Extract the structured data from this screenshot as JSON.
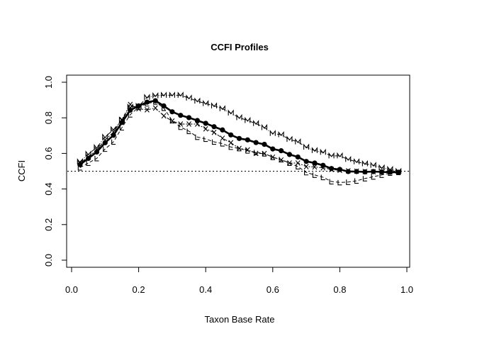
{
  "chart_data": {
    "type": "line",
    "title": "CCFI Profiles",
    "xlabel": "Taxon Base Rate",
    "ylabel": "CCFI",
    "xlim": [
      0,
      1
    ],
    "ylim": [
      0,
      1
    ],
    "xticks": [
      "0.0",
      "0.2",
      "0.4",
      "0.6",
      "0.8",
      "1.0"
    ],
    "yticks": [
      "0.0",
      "0.2",
      "0.4",
      "0.6",
      "0.8",
      "1.0"
    ],
    "reference_line": 0.5,
    "x": [
      0.025,
      0.05,
      0.075,
      0.1,
      0.125,
      0.15,
      0.175,
      0.2,
      0.225,
      0.25,
      0.275,
      0.3,
      0.325,
      0.35,
      0.375,
      0.4,
      0.425,
      0.45,
      0.475,
      0.5,
      0.525,
      0.55,
      0.575,
      0.6,
      0.625,
      0.65,
      0.675,
      0.7,
      0.725,
      0.75,
      0.775,
      0.8,
      0.825,
      0.85,
      0.875,
      0.9,
      0.925,
      0.95,
      0.975
    ],
    "series": [
      {
        "name": "CCFI",
        "marker": "•",
        "values": [
          0.537,
          0.572,
          0.608,
          0.66,
          0.702,
          0.774,
          0.843,
          0.867,
          0.888,
          0.896,
          0.867,
          0.834,
          0.814,
          0.801,
          0.785,
          0.769,
          0.75,
          0.732,
          0.704,
          0.684,
          0.676,
          0.661,
          0.651,
          0.625,
          0.615,
          0.594,
          0.58,
          0.555,
          0.546,
          0.533,
          0.515,
          0.51,
          0.498,
          0.498,
          0.496,
          0.498,
          0.496,
          0.494,
          0.494
        ]
      },
      {
        "name": "M",
        "marker": "M",
        "values": [
          0.553,
          0.596,
          0.633,
          0.692,
          0.734,
          0.788,
          0.86,
          0.865,
          0.915,
          0.924,
          0.927,
          0.927,
          0.927,
          0.911,
          0.894,
          0.88,
          0.867,
          0.851,
          0.827,
          0.801,
          0.785,
          0.768,
          0.745,
          0.712,
          0.705,
          0.679,
          0.665,
          0.635,
          0.616,
          0.606,
          0.586,
          0.586,
          0.566,
          0.553,
          0.542,
          0.533,
          0.519,
          0.51,
          0.499
        ]
      },
      {
        "name": "X",
        "marker": "X",
        "values": [
          0.545,
          0.58,
          0.62,
          0.675,
          0.72,
          0.79,
          0.875,
          0.851,
          0.845,
          0.855,
          0.811,
          0.782,
          0.765,
          0.765,
          0.765,
          0.738,
          0.718,
          0.685,
          0.66,
          0.628,
          0.62,
          0.6,
          0.599,
          0.579,
          0.563,
          0.546,
          0.546,
          0.526,
          0.524,
          0.519,
          0.51,
          0.505,
          0.502,
          0.5,
          0.498,
          0.497,
          0.496,
          0.495,
          0.494
        ]
      },
      {
        "name": "L",
        "marker": "L",
        "values": [
          0.52,
          0.546,
          0.572,
          0.625,
          0.665,
          0.745,
          0.818,
          0.86,
          0.88,
          0.89,
          0.855,
          0.785,
          0.748,
          0.725,
          0.692,
          0.681,
          0.665,
          0.655,
          0.636,
          0.628,
          0.615,
          0.606,
          0.599,
          0.579,
          0.566,
          0.546,
          0.526,
          0.493,
          0.479,
          0.466,
          0.442,
          0.437,
          0.439,
          0.446,
          0.459,
          0.469,
          0.479,
          0.49,
          0.494
        ]
      }
    ]
  }
}
